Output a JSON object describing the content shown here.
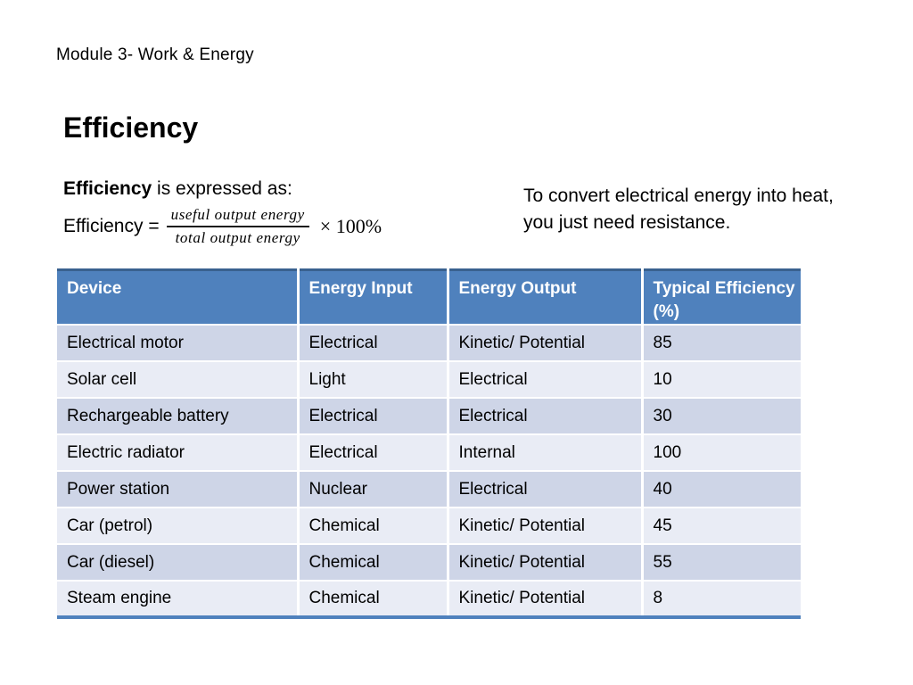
{
  "slide": {
    "header": "Module 3- Work & Energy",
    "title": "Efficiency",
    "intro": {
      "bold": "Efficiency",
      "rest": " is expressed as:"
    },
    "formula": {
      "lhs": "Efficiency =",
      "numerator": "useful output energy",
      "denominator": "total output energy",
      "rhs": "× 100%"
    },
    "note": "To convert electrical energy into heat, you just need resistance."
  },
  "table": {
    "headers": [
      "Device",
      "Energy Input",
      "Energy Output",
      "Typical Efficiency (%)"
    ],
    "rows": [
      [
        "Electrical motor",
        "Electrical",
        "Kinetic/ Potential",
        "85"
      ],
      [
        "Solar cell",
        "Light",
        "Electrical",
        "10"
      ],
      [
        "Rechargeable battery",
        "Electrical",
        "Electrical",
        "30"
      ],
      [
        "Electric radiator",
        "Electrical",
        "Internal",
        "100"
      ],
      [
        "Power station",
        "Nuclear",
        "Electrical",
        "40"
      ],
      [
        "Car (petrol)",
        "Chemical",
        "Kinetic/ Potential",
        "45"
      ],
      [
        "Car (diesel)",
        "Chemical",
        "Kinetic/ Potential",
        "55"
      ],
      [
        "Steam engine",
        "Chemical",
        "Kinetic/ Potential",
        "8"
      ]
    ]
  },
  "colors": {
    "header_bg": "#4f81bd",
    "header_top_border": "#39618f",
    "table_bottom_border": "#4f81bd",
    "row_band_dark": "#ced5e7",
    "row_band_light": "#e9ecf5",
    "header_text": "#ffffff",
    "body_text": "#000000",
    "background": "#ffffff"
  }
}
